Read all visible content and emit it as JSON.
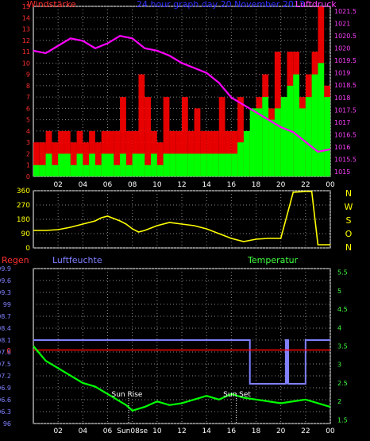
{
  "chart_data": [
    {
      "type": "line",
      "title": "24 hour graph day   20 November 2013",
      "left_label": "Windstärke",
      "right_label": "Luftdruck",
      "x_ticks": [
        "02",
        "04",
        "06",
        "08",
        "10",
        "12",
        "14",
        "16",
        "18",
        "20",
        "22",
        "00"
      ],
      "y_left_ticks": [
        "0",
        "1",
        "2",
        "3",
        "4",
        "5",
        "6",
        "7",
        "8",
        "9",
        "10",
        "11",
        "12",
        "13",
        "14",
        "15"
      ],
      "y_left_lim": [
        0,
        15
      ],
      "y_right_ticks": [
        "1015",
        "1015.5",
        "1016",
        "1016.5",
        "1017",
        "1017.5",
        "1018",
        "1018.5",
        "1019",
        "1019.5",
        "1020",
        "1020.5",
        "1021",
        "1021.5"
      ],
      "y_right_lim": [
        1014.8,
        1021.7
      ],
      "series": [
        {
          "name": "Luftdruck",
          "color": "#ff00ff",
          "x": [
            0,
            1,
            2,
            3,
            4,
            5,
            6,
            7,
            8,
            9,
            10,
            11,
            12,
            13,
            14,
            15,
            16,
            17,
            18,
            19,
            20,
            21,
            22,
            23,
            24
          ],
          "y": [
            1019.9,
            1019.8,
            1020.1,
            1020.4,
            1020.3,
            1020.0,
            1020.2,
            1020.5,
            1020.4,
            1020.0,
            1019.9,
            1019.7,
            1019.4,
            1019.2,
            1019.0,
            1018.6,
            1018.0,
            1017.7,
            1017.4,
            1017.1,
            1016.8,
            1016.6,
            1016.2,
            1015.8,
            1015.9
          ]
        },
        {
          "name": "wind-gust",
          "color": "#ff0000",
          "x": [
            0,
            0.5,
            1,
            1.5,
            2,
            2.5,
            3,
            3.5,
            4,
            4.5,
            5,
            5.5,
            6,
            6.5,
            7,
            7.5,
            8,
            8.5,
            9,
            9.5,
            10,
            10.5,
            11,
            11.5,
            12,
            12.5,
            13,
            13.5,
            14,
            14.5,
            15,
            15.5,
            16,
            16.5,
            17,
            17.5,
            18,
            18.5,
            19,
            19.5,
            20,
            20.5,
            21,
            21.5,
            22,
            22.5,
            23,
            23.5
          ],
          "y": [
            3,
            3,
            4,
            3,
            4,
            4,
            3,
            4,
            3,
            4,
            3,
            4,
            4,
            4,
            7,
            4,
            4,
            9,
            7,
            4,
            3,
            7,
            4,
            4,
            7,
            4,
            6,
            4,
            4,
            4,
            7,
            4,
            4,
            7,
            4,
            4,
            7,
            9,
            6,
            11,
            7,
            11,
            11,
            7,
            9,
            11,
            15,
            8
          ]
        },
        {
          "name": "wind-mean",
          "color": "#00ff00",
          "x": [
            0,
            0.5,
            1,
            1.5,
            2,
            2.5,
            3,
            3.5,
            4,
            4.5,
            5,
            5.5,
            6,
            6.5,
            7,
            7.5,
            8,
            8.5,
            9,
            9.5,
            10,
            10.5,
            11,
            11.5,
            12,
            12.5,
            13,
            13.5,
            14,
            14.5,
            15,
            15.5,
            16,
            16.5,
            17,
            17.5,
            18,
            18.5,
            19,
            19.5,
            20,
            20.5,
            21,
            21.5,
            22,
            22.5,
            23,
            23.5
          ],
          "y": [
            1,
            1,
            2,
            1,
            2,
            2,
            1,
            2,
            1,
            2,
            1,
            2,
            2,
            1,
            2,
            1,
            2,
            2,
            1,
            2,
            1,
            2,
            2,
            2,
            2,
            2,
            2,
            2,
            2,
            2,
            2,
            2,
            2,
            3,
            4,
            6,
            6,
            7,
            5,
            6,
            7,
            8,
            9,
            6,
            7,
            9,
            10,
            7
          ]
        }
      ]
    },
    {
      "type": "line",
      "right_labels": [
        "N",
        "W",
        "S",
        "O",
        "N"
      ],
      "x_ticks": [
        "02",
        "04",
        "06",
        "08",
        "10",
        "12",
        "14",
        "16",
        "18",
        "20",
        "22",
        "00"
      ],
      "y_ticks": [
        "0",
        "90",
        "180",
        "270",
        "360"
      ],
      "y_lim": [
        0,
        360
      ],
      "series": [
        {
          "name": "Windrichtung",
          "color": "#ffff00",
          "x": [
            0,
            1,
            2,
            3,
            4,
            5,
            5.5,
            6,
            6.5,
            7,
            7.5,
            8,
            8.5,
            9,
            10,
            11,
            12,
            13,
            14,
            15,
            16,
            17,
            18,
            19,
            20,
            21,
            22,
            22.5,
            23,
            24
          ],
          "y": [
            110,
            110,
            115,
            130,
            150,
            170,
            190,
            200,
            185,
            170,
            150,
            120,
            100,
            110,
            140,
            160,
            150,
            140,
            120,
            90,
            60,
            40,
            55,
            60,
            60,
            350,
            355,
            355,
            20,
            20
          ]
        }
      ]
    },
    {
      "type": "line",
      "left_label": "Regen",
      "mid_label": "Luftfeuchte",
      "right_label": "Temperatur",
      "x_ticks": [
        "02",
        "04",
        "06",
        "Sun08se",
        "10",
        "12",
        "14",
        "16",
        "18",
        "20",
        "22",
        "00"
      ],
      "humidity_ticks": [
        "96",
        "96.3",
        "96.6",
        "96.9",
        "97.2",
        "97.5",
        "97.8",
        "98.1",
        "98.4",
        "98.7",
        "99",
        "99.3",
        "99.6",
        "99.9"
      ],
      "humidity_lim": [
        96,
        99.9
      ],
      "rain_ticks": [
        "0"
      ],
      "temp_ticks": [
        "1.5",
        "2",
        "2.5",
        "3",
        "3.5",
        "4",
        "4.5",
        "5",
        "5.5"
      ],
      "temp_lim": [
        1.4,
        5.6
      ],
      "annotations": [
        "Sun Rise",
        "Sun Set"
      ],
      "series": [
        {
          "name": "Luftfeuchte",
          "color": "#8080ff",
          "x": [
            0,
            17.5,
            17.5,
            20.4,
            20.4,
            20.6,
            20.6,
            22,
            22,
            24
          ],
          "y": [
            98.1,
            98.1,
            97,
            97,
            98.1,
            98.1,
            97,
            97,
            98.1,
            98.1
          ]
        },
        {
          "name": "Regen",
          "color": "#ff0000",
          "x": [
            0,
            24
          ],
          "y": [
            0,
            0
          ]
        },
        {
          "name": "Temperatur",
          "color": "#00ff00",
          "x": [
            0,
            1,
            2,
            3,
            4,
            5,
            6,
            7,
            7.5,
            8,
            8.5,
            9,
            10,
            11,
            12,
            13,
            14,
            15,
            16,
            17,
            18,
            19,
            20,
            21,
            22,
            23,
            24
          ],
          "y": [
            3.5,
            3.1,
            2.9,
            2.7,
            2.5,
            2.4,
            2.2,
            2.0,
            1.9,
            1.75,
            1.8,
            1.85,
            2.0,
            1.9,
            1.95,
            2.05,
            2.15,
            2.05,
            2.2,
            2.1,
            2.05,
            2.0,
            1.95,
            2.0,
            2.05,
            1.95,
            1.85
          ]
        }
      ]
    }
  ]
}
